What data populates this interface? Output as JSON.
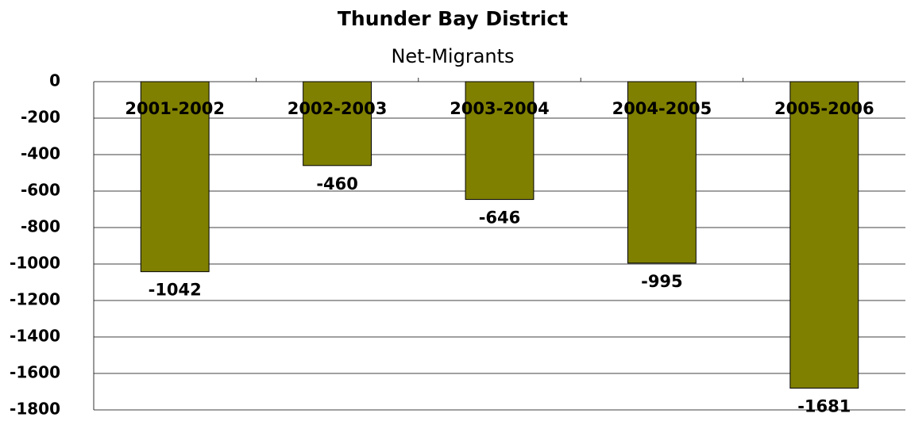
{
  "chart_data": {
    "type": "bar",
    "title": "Thunder Bay District",
    "subtitle": "Net-Migrants",
    "categories": [
      "2001-2002",
      "2002-2003",
      "2003-2004",
      "2004-2005",
      "2005-2006"
    ],
    "values": [
      -1042,
      -460,
      -646,
      -995,
      -1681
    ],
    "color": "#808000",
    "ylim": [
      -1800,
      0
    ],
    "yticks": [
      0,
      -200,
      -400,
      -600,
      -800,
      -1000,
      -1200,
      -1400,
      -1600,
      -1800
    ],
    "grid": true
  }
}
